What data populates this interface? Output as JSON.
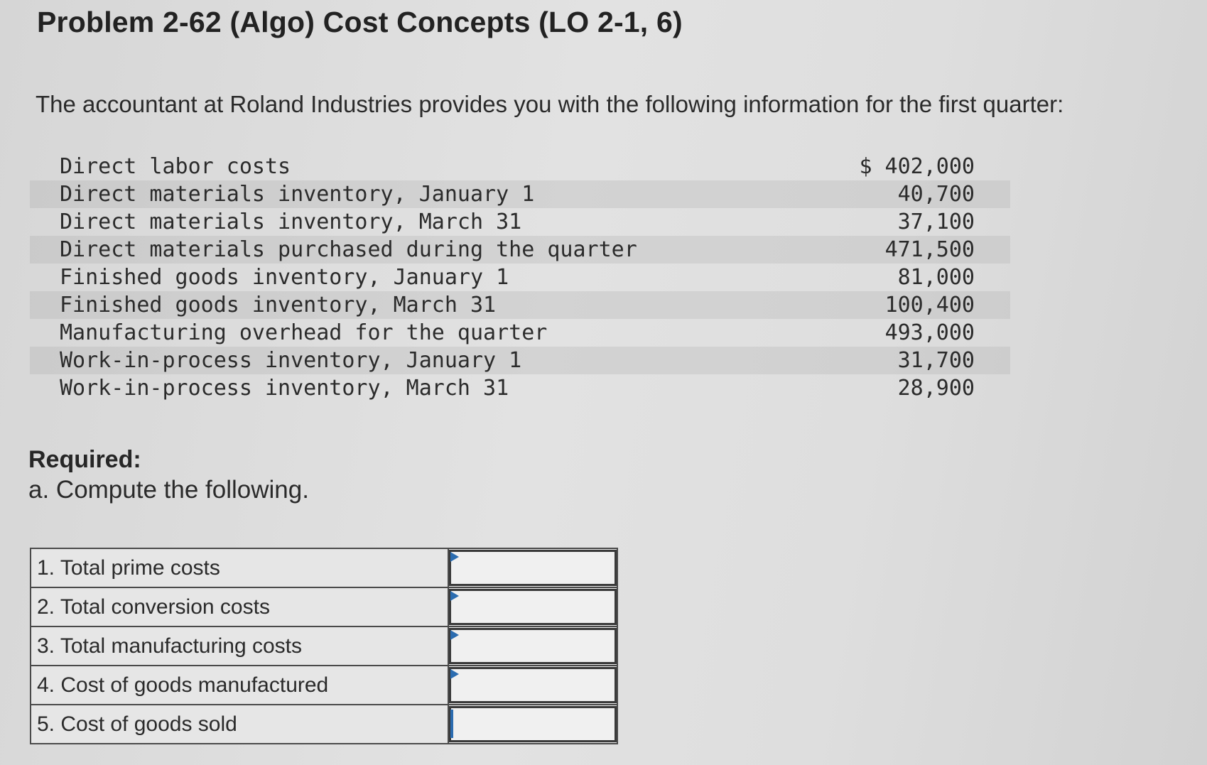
{
  "title": "Problem 2-62 (Algo) Cost Concepts (LO 2-1, 6)",
  "intro": "The accountant at Roland Industries provides you with the following information for the first quarter:",
  "data_rows": [
    {
      "label": "Direct labor costs",
      "amount": "$ 402,000"
    },
    {
      "label": "Direct materials inventory, January 1",
      "amount": "40,700"
    },
    {
      "label": "Direct materials inventory, March 31",
      "amount": "37,100"
    },
    {
      "label": "Direct materials purchased during the quarter",
      "amount": "471,500"
    },
    {
      "label": "Finished goods inventory, January 1",
      "amount": "81,000"
    },
    {
      "label": "Finished goods inventory, March 31",
      "amount": "100,400"
    },
    {
      "label": "Manufacturing overhead for the quarter",
      "amount": "493,000"
    },
    {
      "label": "Work-in-process inventory, January 1",
      "amount": "31,700"
    },
    {
      "label": "Work-in-process inventory, March 31",
      "amount": "28,900"
    }
  ],
  "required_heading": "Required:",
  "instruction": "a. Compute the following.",
  "answers": [
    {
      "label": "1. Total prime costs",
      "value": ""
    },
    {
      "label": "2. Total conversion costs",
      "value": ""
    },
    {
      "label": "3. Total manufacturing costs",
      "value": ""
    },
    {
      "label": "4. Cost of goods manufactured",
      "value": ""
    },
    {
      "label": "5. Cost of goods sold",
      "value": ""
    }
  ],
  "colors": {
    "marker": "#2b6cb0",
    "background": "#dcdcdc"
  }
}
